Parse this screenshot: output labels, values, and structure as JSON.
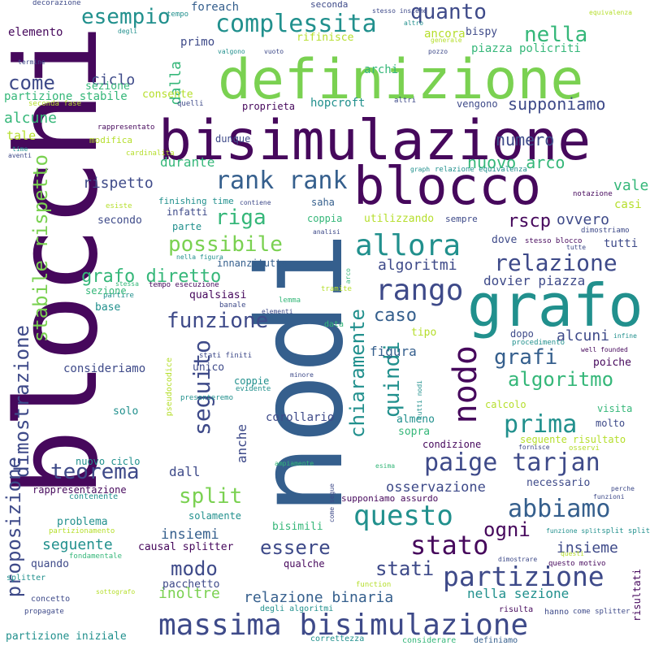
{
  "palette": {
    "dark_purple": "#46085c",
    "indigo": "#3e4a89",
    "slate_blue": "#355f8d",
    "teal": "#21908d",
    "green": "#35b779",
    "lime": "#7ad151",
    "yellow_green": "#b5de2b",
    "yellow": "#dfe318"
  },
  "words": [
    "blocchi",
    "nodi",
    "bisimulazione",
    "definizione",
    "grafo",
    "blocco",
    "massima bisimulazione",
    "allora",
    "partizione",
    "rango",
    "rank rank",
    "possibile",
    "stato",
    "questo",
    "paige tarjan",
    "abbiamo",
    "nodo",
    "complessita",
    "prima",
    "esempio",
    "proposizione",
    "dimostrazione",
    "stabile rispetto",
    "relazione",
    "funzione",
    "seguito",
    "chiaramente",
    "quindi",
    "teorema",
    "split",
    "modo",
    "algoritmo",
    "grafi",
    "grafo diretto",
    "riga",
    "nella",
    "quanto",
    "come",
    "numero",
    "nuovo arco",
    "supponiamo",
    "ogni",
    "essere",
    "stati",
    "caso",
    "rscp",
    "ovvero",
    "algoritmi",
    "dovier piazza",
    "alcuni",
    "figura",
    "osservazione",
    "relazione binaria",
    "insiemi",
    "inoltre",
    "seguente",
    "ciclo",
    "durante",
    "tale",
    "alcune",
    "rispetto",
    "vale",
    "dall",
    "anche",
    "dalla",
    "insieme",
    "nella sezione",
    "tutti",
    "casi",
    "hopcroft",
    "archi",
    "consideriamo",
    "corollario",
    "primo",
    "bispy",
    "foreach",
    "decorazione",
    "elemento",
    "seconda",
    "tempo",
    "stesso insieme",
    "equivalenza",
    "ancora",
    "altro",
    "degli",
    "piazza policriti",
    "termine",
    "partizione stabile",
    "consente",
    "sezione",
    "rifinisce",
    "valgono",
    "vuoto",
    "pozzo",
    "generale",
    "evidente",
    "supponiamo assurdo",
    "causal splitter",
    "bisimili",
    "solamente",
    "problema",
    "quando",
    "pacchetto",
    "concetto",
    "propagate",
    "partizione iniziale",
    "correttezza",
    "considerare",
    "risultati",
    "definiamo",
    "proprieta",
    "vengono",
    "seconda fase",
    "quelli",
    "rappresentato",
    "modifica",
    "cardinalita",
    "time",
    "aventi",
    "dunque",
    "graph",
    "relazione equivalenza",
    "notazione",
    "saha",
    "coppia",
    "utilizzando",
    "sempre",
    "parte",
    "innanzitutto",
    "dove",
    "stesso blocco",
    "dimostriamo",
    "tutte",
    "nella figura",
    "arco",
    "tramite",
    "lemma",
    "elementi",
    "tempo esecuzione",
    "partire",
    "banale",
    "stessa",
    "base",
    "qualsiasi",
    "data",
    "tipo",
    "dopo",
    "procedimento",
    "infine",
    "well founded",
    "poiche",
    "calcolo",
    "unico",
    "coppie",
    "stati finiti",
    "minore",
    "tutti nodi",
    "pseudocodice",
    "presenteremo",
    "solo",
    "almeno",
    "sopra",
    "condizione",
    "visita",
    "molto",
    "seguente risultato",
    "osservi",
    "fornisce",
    "come segue",
    "ampiamente",
    "esima",
    "necessario",
    "perche",
    "funzioni",
    "funzione split",
    "split split",
    "questi",
    "qualche",
    "dimostrare",
    "questo motivo",
    "splitter",
    "sottografo",
    "function",
    "degli algoritmi",
    "risulta",
    "hanno",
    "come splitter",
    "nuovo ciclo",
    "rappresentazione",
    "contenente",
    "partizionamento",
    "fondamentale",
    "finishing time",
    "contiene",
    "secondo",
    "infatti",
    "esiste",
    "analisi",
    "altri",
    "sezione"
  ]
}
